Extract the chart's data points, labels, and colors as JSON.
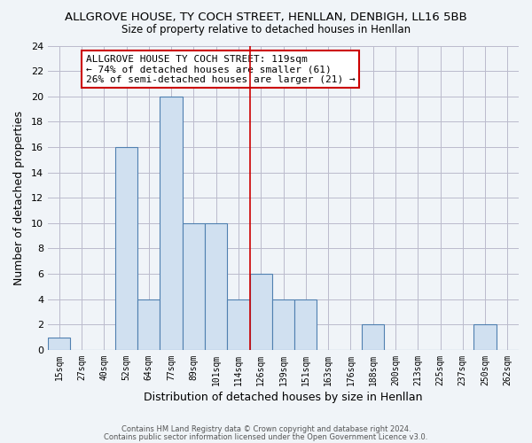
{
  "title": "ALLGROVE HOUSE, TY COCH STREET, HENLLAN, DENBIGH, LL16 5BB",
  "subtitle": "Size of property relative to detached houses in Henllan",
  "xlabel": "Distribution of detached houses by size in Henllan",
  "ylabel": "Number of detached properties",
  "bins": [
    "15sqm",
    "27sqm",
    "40sqm",
    "52sqm",
    "64sqm",
    "77sqm",
    "89sqm",
    "101sqm",
    "114sqm",
    "126sqm",
    "139sqm",
    "151sqm",
    "163sqm",
    "176sqm",
    "188sqm",
    "200sqm",
    "213sqm",
    "225sqm",
    "237sqm",
    "250sqm",
    "262sqm"
  ],
  "values": [
    1,
    0,
    0,
    16,
    4,
    20,
    10,
    10,
    4,
    6,
    4,
    4,
    0,
    0,
    2,
    0,
    0,
    0,
    0,
    2,
    0
  ],
  "bar_color": "#d0e0f0",
  "bar_edge_color": "#5080b0",
  "vline_x_index": 8.5,
  "vline_color": "#cc0000",
  "ylim": [
    0,
    24
  ],
  "yticks": [
    0,
    2,
    4,
    6,
    8,
    10,
    12,
    14,
    16,
    18,
    20,
    22,
    24
  ],
  "annotation_title": "ALLGROVE HOUSE TY COCH STREET: 119sqm",
  "annotation_line1": "← 74% of detached houses are smaller (61)",
  "annotation_line2": "26% of semi-detached houses are larger (21) →",
  "annotation_box_color": "#ffffff",
  "annotation_box_edge": "#cc0000",
  "footer1": "Contains HM Land Registry data © Crown copyright and database right 2024.",
  "footer2": "Contains public sector information licensed under the Open Government Licence v3.0.",
  "background_color": "#f0f4f8",
  "plot_bg_color": "#f0f4f8",
  "grid_color": "#bbbbcc"
}
